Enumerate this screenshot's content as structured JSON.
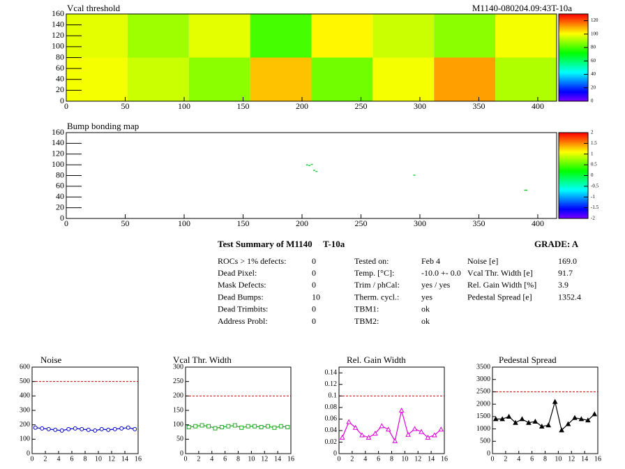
{
  "header": "M1140-080204.09:43T-10a",
  "chart_data": [
    {
      "type": "heatmap",
      "title": "Vcal threshold",
      "xbins": [
        0,
        52,
        104,
        156,
        208,
        260,
        312,
        364,
        416
      ],
      "ybins": [
        0,
        80,
        160
      ],
      "values": [
        [
          100,
          95,
          88,
          108,
          85,
          100,
          112,
          92
        ],
        [
          98,
          90,
          98,
          80,
          102,
          95,
          88,
          100
        ]
      ],
      "xlim": [
        0,
        416
      ],
      "ylim": [
        0,
        160
      ],
      "xticks": [
        0,
        50,
        100,
        150,
        200,
        250,
        300,
        350,
        400
      ],
      "yticks": [
        0,
        20,
        40,
        60,
        80,
        100,
        120,
        140,
        160
      ],
      "zlim": [
        0,
        130
      ],
      "zticks": [
        0,
        20,
        40,
        60,
        80,
        100,
        120
      ]
    },
    {
      "type": "scatter",
      "title": "Bump bonding map",
      "x": [
        204,
        206,
        208,
        210,
        212,
        295,
        389,
        390
      ],
      "values": [
        100,
        99,
        101,
        90,
        88,
        81,
        53,
        53
      ],
      "color": "#22cc44",
      "xlim": [
        0,
        416
      ],
      "ylim": [
        0,
        160
      ],
      "xticks": [
        0,
        50,
        100,
        150,
        200,
        250,
        300,
        350,
        400
      ],
      "yticks": [
        0,
        20,
        40,
        60,
        80,
        100,
        120,
        140,
        160
      ],
      "zlim": [
        -2,
        2
      ],
      "zticks": [
        -2,
        -1.5,
        -1,
        -0.5,
        0,
        0.5,
        1,
        1.5,
        2
      ]
    },
    {
      "type": "line",
      "title": "Noise",
      "color": "#0000cc",
      "marker": "circle",
      "x": [
        0.5,
        1.5,
        2.5,
        3.5,
        4.5,
        5.5,
        6.5,
        7.5,
        8.5,
        9.5,
        10.5,
        11.5,
        12.5,
        13.5,
        14.5,
        15.5
      ],
      "values": [
        180,
        175,
        170,
        165,
        160,
        170,
        175,
        170,
        165,
        160,
        170,
        165,
        170,
        175,
        180,
        170
      ],
      "limit": 500,
      "xlim": [
        0,
        16
      ],
      "ylim": [
        0,
        600
      ],
      "xticks": [
        0,
        2,
        4,
        6,
        8,
        10,
        12,
        14,
        16
      ],
      "yticks": [
        0,
        100,
        200,
        300,
        400,
        500,
        600
      ]
    },
    {
      "type": "line",
      "title": "Vcal Thr. Width",
      "color": "#22aa22",
      "marker": "square",
      "x": [
        0.5,
        1.5,
        2.5,
        3.5,
        4.5,
        5.5,
        6.5,
        7.5,
        8.5,
        9.5,
        10.5,
        11.5,
        12.5,
        13.5,
        14.5,
        15.5
      ],
      "values": [
        92,
        95,
        98,
        95,
        88,
        92,
        95,
        98,
        90,
        95,
        95,
        92,
        95,
        90,
        95,
        92
      ],
      "limit": 200,
      "xlim": [
        0,
        16
      ],
      "ylim": [
        0,
        300
      ],
      "xticks": [
        0,
        2,
        4,
        6,
        8,
        10,
        12,
        14,
        16
      ],
      "yticks": [
        0,
        50,
        100,
        150,
        200,
        250,
        300
      ]
    },
    {
      "type": "line",
      "title": "Rel. Gain Width",
      "color": "#dd00dd",
      "marker": "triangle",
      "x": [
        0.5,
        1.5,
        2.5,
        3.5,
        4.5,
        5.5,
        6.5,
        7.5,
        8.5,
        9.5,
        10.5,
        11.5,
        12.5,
        13.5,
        14.5,
        15.5
      ],
      "values": [
        0.028,
        0.055,
        0.045,
        0.032,
        0.028,
        0.035,
        0.048,
        0.042,
        0.022,
        0.075,
        0.033,
        0.043,
        0.038,
        0.028,
        0.032,
        0.042
      ],
      "limit": 0.1,
      "xlim": [
        0,
        16
      ],
      "ylim": [
        0,
        0.15
      ],
      "xticks": [
        0,
        2,
        4,
        6,
        8,
        10,
        12,
        14,
        16
      ],
      "yticks": [
        0,
        0.02,
        0.04,
        0.06,
        0.08,
        0.1,
        0.12,
        0.14
      ]
    },
    {
      "type": "line",
      "title": "Pedestal Spread",
      "color": "#000000",
      "marker": "filled",
      "x": [
        0.5,
        1.5,
        2.5,
        3.5,
        4.5,
        5.5,
        6.5,
        7.5,
        8.5,
        9.5,
        10.5,
        11.5,
        12.5,
        13.5,
        14.5,
        15.5
      ],
      "values": [
        1400,
        1400,
        1500,
        1250,
        1400,
        1250,
        1300,
        1100,
        1150,
        2100,
        950,
        1200,
        1450,
        1400,
        1350,
        1600
      ],
      "limit": 2500,
      "xlim": [
        0,
        16
      ],
      "ylim": [
        0,
        3500
      ],
      "xticks": [
        0,
        2,
        4,
        6,
        8,
        10,
        12,
        14,
        16
      ],
      "yticks": [
        0,
        500,
        1000,
        1500,
        2000,
        2500,
        3000,
        3500
      ]
    }
  ],
  "summary": {
    "title": "Test Summary of M1140",
    "tag": "T-10a",
    "grade": "GRADE:  A",
    "col1": [
      [
        "ROCs > 1% defects:",
        "0"
      ],
      [
        "Dead Pixel:",
        "0"
      ],
      [
        "Mask Defects:",
        "0"
      ],
      [
        "Dead Bumps:",
        "10"
      ],
      [
        "Dead Trimbits:",
        "0"
      ],
      [
        "Address Probl:",
        "0"
      ]
    ],
    "col2": [
      [
        "Tested on:",
        "Feb 4"
      ],
      [
        "Temp. [°C]:",
        "-10.0 +- 0.0"
      ],
      [
        "Trim / phCal:",
        "yes / yes"
      ],
      [
        "Therm. cycl.:",
        "yes"
      ],
      [
        "TBM1:",
        "ok"
      ],
      [
        "TBM2:",
        "ok"
      ]
    ],
    "col3": [
      [
        "Noise [e]",
        "169.0"
      ],
      [
        "Vcal Thr. Width [e]",
        "91.7"
      ],
      [
        "Rel. Gain Width [%]",
        "3.9"
      ],
      [
        "Pedestal Spread [e]",
        "1352.4"
      ]
    ]
  }
}
